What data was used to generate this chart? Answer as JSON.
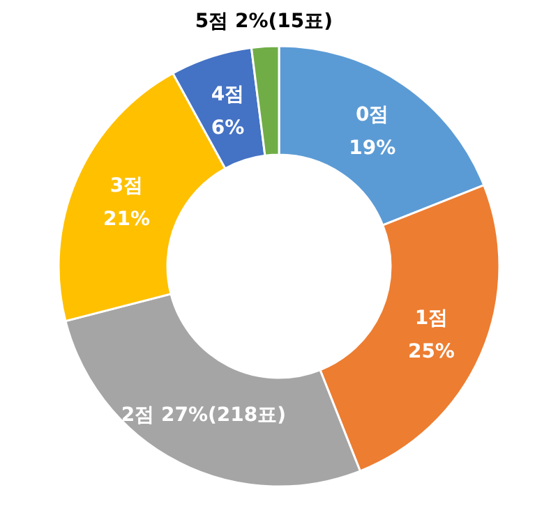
{
  "chart_data": {
    "type": "donut",
    "categories": [
      "0점",
      "1점",
      "2점",
      "3점",
      "4점",
      "5점"
    ],
    "values": [
      19,
      25,
      27,
      21,
      6,
      2
    ],
    "value_labels": [
      "19%",
      "25%",
      "27%(218표)",
      "21%",
      "6%",
      "2%(15표)"
    ],
    "colors": [
      "#5b9bd5",
      "#ed7d31",
      "#a5a5a5",
      "#ffc000",
      "#4472c4",
      "#70ad47"
    ]
  }
}
